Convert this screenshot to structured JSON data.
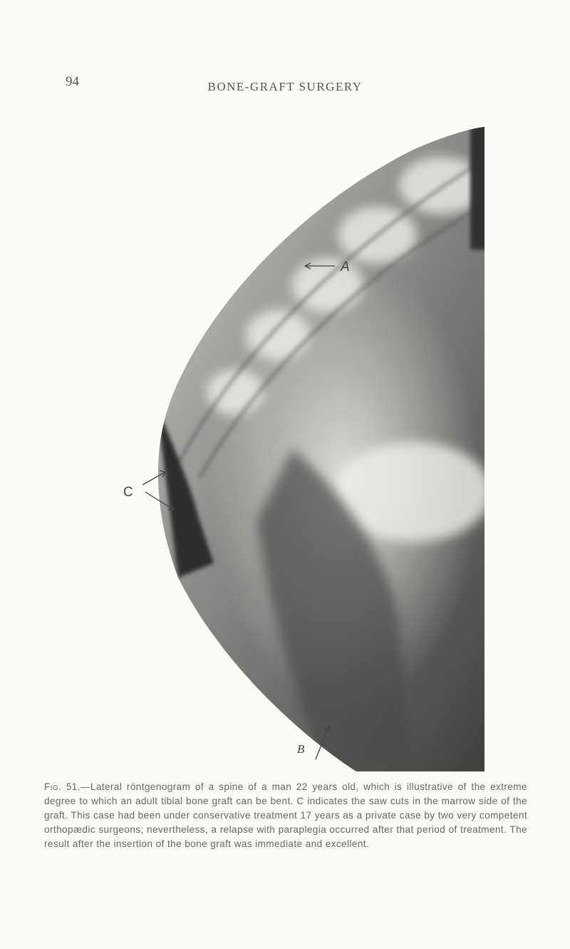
{
  "header": {
    "page_number": "94",
    "running_title": "BONE-GRAFT SURGERY"
  },
  "figure": {
    "labels": {
      "a": "A",
      "b": "B",
      "c": "C"
    }
  },
  "caption": {
    "label": "Fig. 51.",
    "text": "—Lateral röntgenogram of a spine of a man 22 years old, which is illustrative of the extreme degree to which an adult tibial bone graft can be bent. C indicates the saw cuts in the marrow side of the graft. This case had been under conservative treatment 17 years as a private case by two very competent orthopædic surgeons; nevertheless, a relapse with paraplegia occurred after that period of treatment. The result after the insertion of the bone graft was immediate and excellent."
  }
}
